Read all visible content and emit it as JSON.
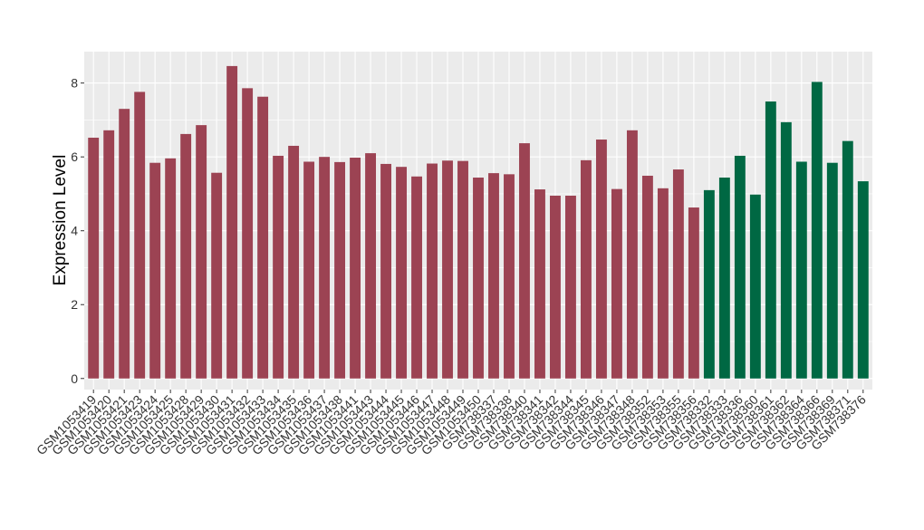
{
  "chart_data": {
    "type": "bar",
    "title": "",
    "xlabel": "",
    "ylabel": "Expression Level",
    "ylim": [
      -0.3,
      8.85
    ],
    "yticks": [
      0,
      2,
      4,
      6,
      8
    ],
    "grid": true,
    "legend": "none",
    "categories": [
      "GSM1053419",
      "GSM1053420",
      "GSM1053421",
      "GSM1053423",
      "GSM1053424",
      "GSM1053425",
      "GSM1053428",
      "GSM1053429",
      "GSM1053430",
      "GSM1053431",
      "GSM1053432",
      "GSM1053433",
      "GSM1053434",
      "GSM1053435",
      "GSM1053436",
      "GSM1053437",
      "GSM1053438",
      "GSM1053441",
      "GSM1053443",
      "GSM1053444",
      "GSM1053445",
      "GSM1053446",
      "GSM1053447",
      "GSM1053448",
      "GSM1053449",
      "GSM1053450",
      "GSM738337",
      "GSM738338",
      "GSM738340",
      "GSM738341",
      "GSM738342",
      "GSM738344",
      "GSM738345",
      "GSM738346",
      "GSM738347",
      "GSM738348",
      "GSM738352",
      "GSM738353",
      "GSM738355",
      "GSM738356",
      "GSM738332",
      "GSM738333",
      "GSM738336",
      "GSM738360",
      "GSM738361",
      "GSM738362",
      "GSM738364",
      "GSM738366",
      "GSM738369",
      "GSM738371",
      "GSM738376"
    ],
    "values": [
      6.52,
      6.72,
      7.3,
      7.76,
      5.84,
      5.96,
      6.62,
      6.86,
      5.57,
      8.46,
      7.86,
      7.63,
      6.03,
      6.3,
      5.87,
      6.0,
      5.86,
      5.98,
      6.1,
      5.81,
      5.73,
      5.47,
      5.82,
      5.9,
      5.89,
      5.44,
      5.56,
      5.53,
      6.37,
      5.12,
      4.95,
      4.95,
      5.91,
      6.47,
      5.13,
      6.72,
      5.49,
      5.15,
      5.66,
      4.63,
      5.1,
      5.44,
      6.03,
      4.98,
      7.5,
      6.94,
      5.87,
      8.03,
      5.84,
      6.43,
      5.34
    ],
    "group_sizes": [
      40,
      11
    ],
    "colors": {
      "group1": "#9c4353",
      "group2": "#006843",
      "panel": "#ebebeb",
      "grid": "#ffffff",
      "axis_text": "#333333"
    }
  }
}
